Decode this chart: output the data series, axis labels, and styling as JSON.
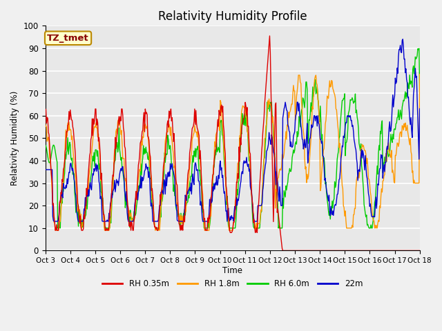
{
  "title": "Relativity Humidity Profile",
  "xlabel": "Time",
  "ylabel": "Relativity Humidity (%)",
  "ylim": [
    0,
    100
  ],
  "xlim": [
    0,
    15
  ],
  "x_tick_labels": [
    "Oct 3",
    "Oct 4",
    "Oct 5",
    "Oct 6",
    "Oct 7",
    "Oct 8",
    "Oct 9",
    "Oct 10",
    "Oct 11",
    "Oct 12",
    "Oct 13",
    "Oct 14",
    "Oct 15",
    "Oct 16",
    "Oct 17",
    "Oct 18"
  ],
  "colors": {
    "rh035": "#dd0000",
    "rh18": "#ff9900",
    "rh60": "#00cc00",
    "rh22m": "#0000cc"
  },
  "legend_labels": [
    "RH 0.35m",
    "RH 1.8m",
    "RH 6.0m",
    "22m"
  ],
  "annotation_text": "TZ_tmet",
  "annotation_box_color": "#ffffcc",
  "annotation_text_color": "#880000",
  "background_color": "#e8e8e8",
  "plot_bg_color": "#e8e8e8",
  "grid_color": "#ffffff",
  "title_fontsize": 12
}
